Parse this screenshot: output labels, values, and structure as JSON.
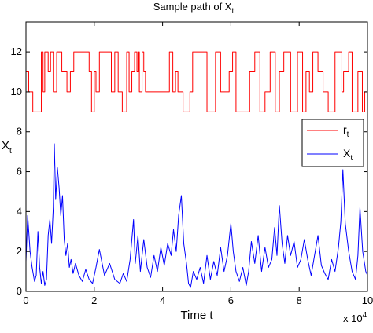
{
  "chart_data": {
    "type": "line",
    "title": "Sample path of X",
    "title_subscript": "t",
    "xlabel": "Time t",
    "ylabel": "X",
    "ylabel_subscript": "t",
    "x_multiplier": "x 10",
    "x_multiplier_exponent": "4",
    "xlim": [
      0,
      10
    ],
    "ylim": [
      0,
      13.5
    ],
    "xticks": [
      0,
      2,
      4,
      6,
      8,
      10
    ],
    "yticks": [
      0,
      2,
      4,
      6,
      8,
      10,
      12
    ],
    "grid": false,
    "legend_position": "right",
    "legend": [
      {
        "label": "r",
        "subscript": "t",
        "color": "#ff0000"
      },
      {
        "label": "X",
        "subscript": "t",
        "color": "#0000ff"
      }
    ],
    "series": [
      {
        "name": "r_t",
        "color": "#ff0000",
        "step": true,
        "x": [
          0,
          0.08,
          0.2,
          0.45,
          0.5,
          0.55,
          0.65,
          0.72,
          0.8,
          0.9,
          1.05,
          1.2,
          1.3,
          1.4,
          1.5,
          1.85,
          1.92,
          2.0,
          2.05,
          2.15,
          2.5,
          2.6,
          2.7,
          2.82,
          2.95,
          3.02,
          3.1,
          3.18,
          3.25,
          3.3,
          3.32,
          3.4,
          3.45,
          3.5,
          3.6,
          4.2,
          4.3,
          4.38,
          4.45,
          4.6,
          4.72,
          4.8,
          4.88,
          4.95,
          5.3,
          5.42,
          5.55,
          5.7,
          5.95,
          6.05,
          6.15,
          6.4,
          6.55,
          6.7,
          6.85,
          7.0,
          7.15,
          7.3,
          7.42,
          7.55,
          7.75,
          7.95,
          8.1,
          8.2,
          8.3,
          8.4,
          8.55,
          8.7,
          8.85,
          9.05,
          9.25,
          9.3,
          9.45,
          9.55,
          9.72,
          9.85,
          9.92,
          10.0
        ],
        "values": [
          11,
          10,
          9,
          12,
          10,
          12,
          11,
          12,
          10,
          12,
          11,
          10,
          11,
          12,
          12,
          11,
          9,
          11,
          10,
          12,
          10,
          12,
          10,
          9,
          12,
          10,
          11,
          12,
          11,
          12,
          10,
          12,
          11,
          10,
          10,
          12,
          10,
          11,
          10,
          9,
          9,
          10,
          12,
          12,
          9,
          9,
          12,
          10,
          11,
          12,
          9,
          9,
          11,
          12,
          9,
          10,
          12,
          9,
          11,
          12,
          9,
          12,
          9,
          11,
          10,
          12,
          11,
          10,
          9,
          12,
          10,
          11,
          12,
          9,
          11,
          9,
          10,
          10
        ]
      },
      {
        "name": "X_t",
        "color": "#0000ff",
        "step": false,
        "x": [
          0,
          0.05,
          0.12,
          0.18,
          0.25,
          0.3,
          0.35,
          0.4,
          0.45,
          0.5,
          0.55,
          0.6,
          0.65,
          0.7,
          0.75,
          0.8,
          0.83,
          0.87,
          0.92,
          0.97,
          1.02,
          1.07,
          1.12,
          1.17,
          1.22,
          1.27,
          1.32,
          1.38,
          1.45,
          1.55,
          1.65,
          1.75,
          1.85,
          1.95,
          2.05,
          2.15,
          2.3,
          2.45,
          2.6,
          2.75,
          2.85,
          2.95,
          3.05,
          3.15,
          3.2,
          3.28,
          3.35,
          3.45,
          3.55,
          3.65,
          3.75,
          3.85,
          3.95,
          4.05,
          4.15,
          4.25,
          4.32,
          4.4,
          4.47,
          4.55,
          4.62,
          4.7,
          4.76,
          4.82,
          4.9,
          5.0,
          5.1,
          5.2,
          5.3,
          5.4,
          5.5,
          5.6,
          5.7,
          5.8,
          5.9,
          6.0,
          6.07,
          6.15,
          6.25,
          6.35,
          6.45,
          6.52,
          6.6,
          6.7,
          6.8,
          6.9,
          7.0,
          7.1,
          7.2,
          7.28,
          7.35,
          7.42,
          7.5,
          7.58,
          7.66,
          7.75,
          7.85,
          7.95,
          8.05,
          8.15,
          8.25,
          8.35,
          8.45,
          8.55,
          8.65,
          8.75,
          8.85,
          8.95,
          9.05,
          9.15,
          9.22,
          9.28,
          9.35,
          9.45,
          9.55,
          9.65,
          9.72,
          9.78,
          9.86,
          9.95,
          10.0
        ],
        "values": [
          1.5,
          3.8,
          2.0,
          1.2,
          0.5,
          0.8,
          3.0,
          1.2,
          0.4,
          1.0,
          0.3,
          0.6,
          2.8,
          3.6,
          2.4,
          4.2,
          7.4,
          4.6,
          6.2,
          5.2,
          3.8,
          4.8,
          2.6,
          1.8,
          2.4,
          1.2,
          1.6,
          0.9,
          1.4,
          0.8,
          0.5,
          1.1,
          0.6,
          0.4,
          1.2,
          2.1,
          0.8,
          1.4,
          0.6,
          0.4,
          0.9,
          0.5,
          1.6,
          3.6,
          1.4,
          2.8,
          1.0,
          2.6,
          1.2,
          0.7,
          1.8,
          1.0,
          2.2,
          1.3,
          2.4,
          1.8,
          3.1,
          2.0,
          3.8,
          4.8,
          2.4,
          1.4,
          0.4,
          0.2,
          1.0,
          0.6,
          1.2,
          0.4,
          1.8,
          0.6,
          1.5,
          0.8,
          2.2,
          1.0,
          1.8,
          3.4,
          2.0,
          1.0,
          0.5,
          1.2,
          0.3,
          1.0,
          2.5,
          1.4,
          2.8,
          1.0,
          2.2,
          1.2,
          1.6,
          3.2,
          1.8,
          4.3,
          2.4,
          1.4,
          2.8,
          1.8,
          2.5,
          1.2,
          1.6,
          2.6,
          1.6,
          0.8,
          1.8,
          2.8,
          1.3,
          0.9,
          0.6,
          1.6,
          1.0,
          2.2,
          3.5,
          6.1,
          3.4,
          2.0,
          1.0,
          0.6,
          1.8,
          4.2,
          2.0,
          1.0,
          0.8
        ]
      }
    ]
  }
}
